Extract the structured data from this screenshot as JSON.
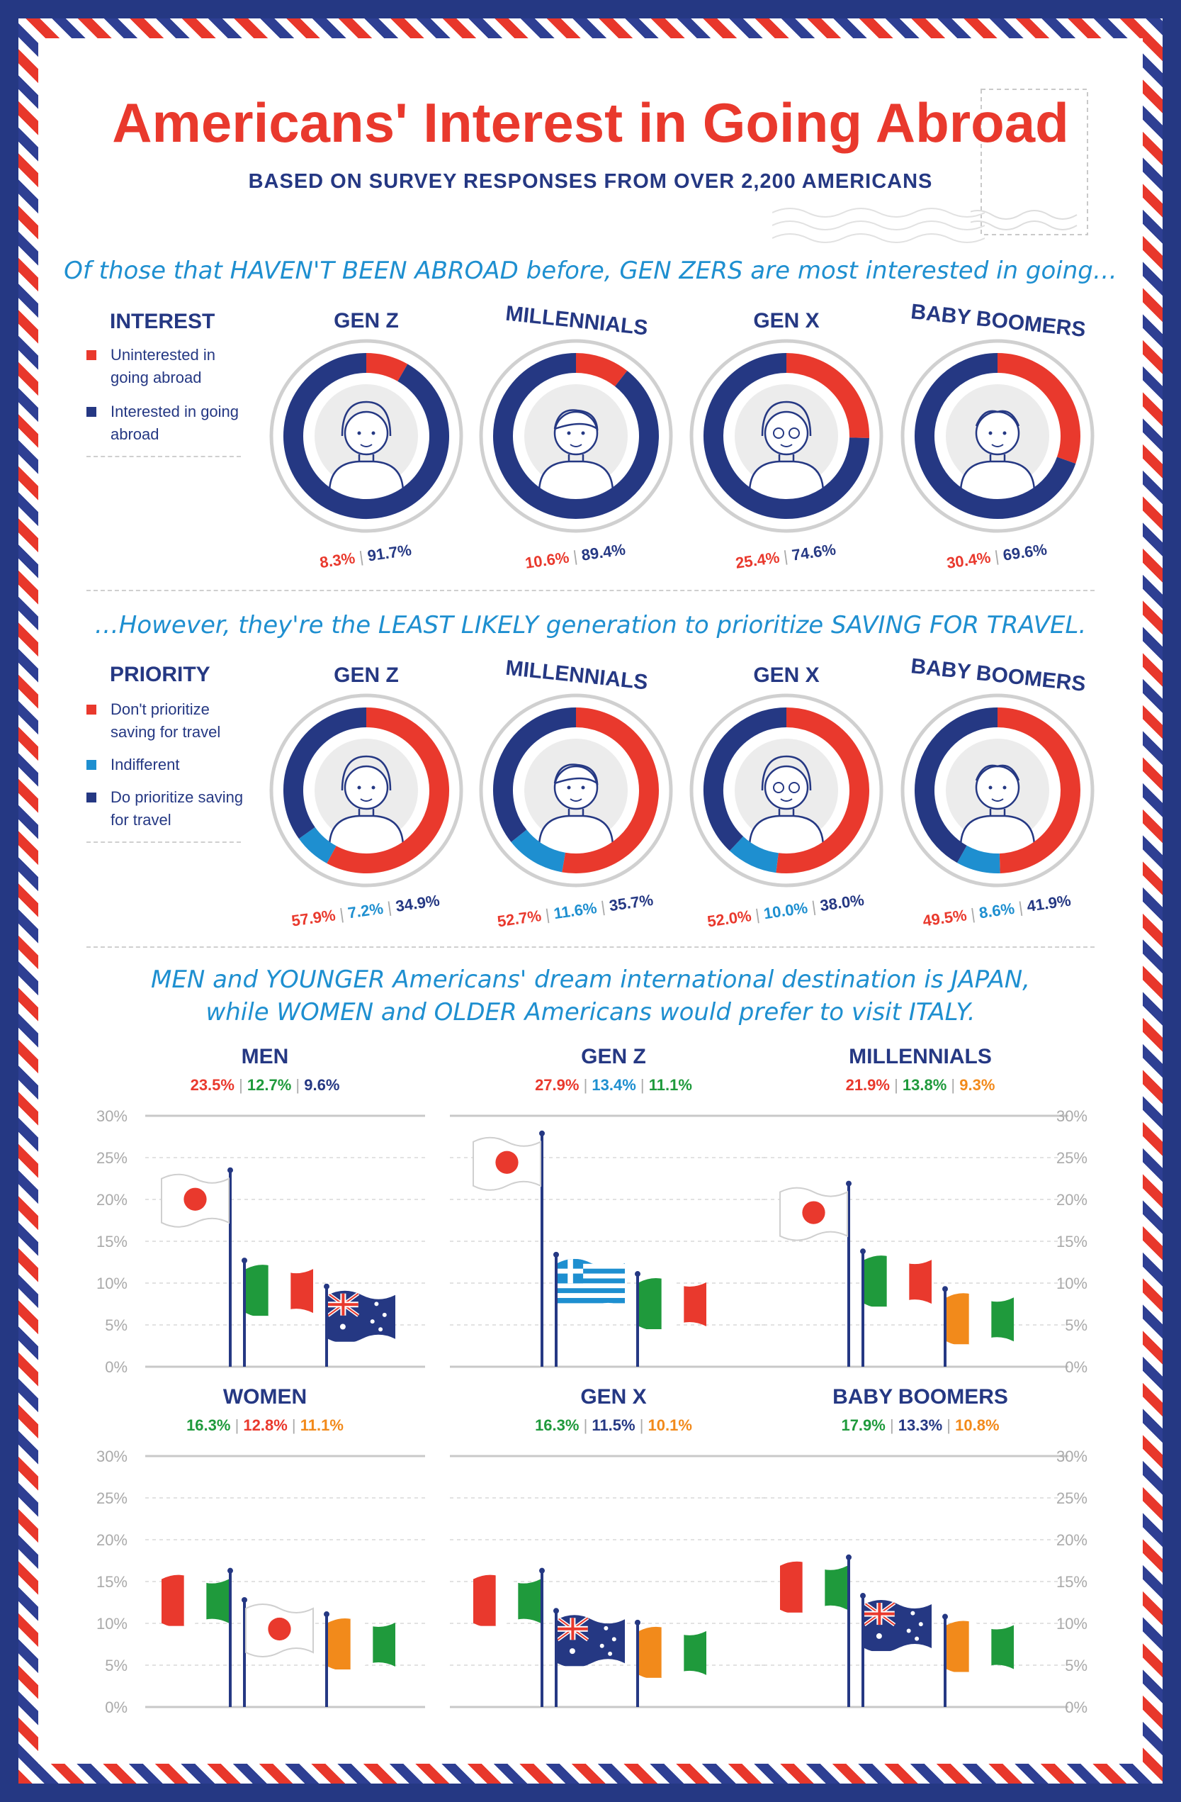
{
  "title": "Americans' Interest in Going Abroad",
  "subtitle": "BASED ON SURVEY RESPONSES FROM OVER 2,200 AMERICANS",
  "section1": {
    "headline": "Of those that HAVEN'T BEEN ABROAD before, GEN ZERS are most interested in going…",
    "legend_title": "INTEREST",
    "legend": [
      {
        "label": "Uninterested in going abroad",
        "color": "#e9392d"
      },
      {
        "label": "Interested in going abroad",
        "color": "#253883"
      }
    ]
  },
  "section2": {
    "headline": "…However, they're the LEAST LIKELY generation to prioritize SAVING FOR TRAVEL.",
    "legend_title": "PRIORITY",
    "legend": [
      {
        "label": "Don't prioritize saving for travel",
        "color": "#e9392d"
      },
      {
        "label": "Indifferent",
        "color": "#1e8fd0"
      },
      {
        "label": "Do prioritize saving for travel",
        "color": "#253883"
      }
    ]
  },
  "section3": {
    "headline_line1": "MEN and YOUNGER Americans' dream international destination is JAPAN,",
    "headline_line2": "while WOMEN and OLDER Americans would prefer to visit ITALY."
  },
  "colors": {
    "red": "#e9392d",
    "navy": "#253883",
    "blue": "#1e8fd0",
    "green": "#1f9a3c",
    "orange": "#f28a1b"
  },
  "chart_data": [
    {
      "type": "pie",
      "title": "INTEREST",
      "groups": [
        {
          "name": "GEN Z",
          "values": [
            8.3,
            91.7
          ],
          "labels": [
            "8.3%",
            "91.7%"
          ]
        },
        {
          "name": "MILLENNIALS",
          "values": [
            10.6,
            89.4
          ],
          "labels": [
            "10.6%",
            "89.4%"
          ]
        },
        {
          "name": "GEN X",
          "values": [
            25.4,
            74.6
          ],
          "labels": [
            "25.4%",
            "74.6%"
          ]
        },
        {
          "name": "BABY BOOMERS",
          "values": [
            30.4,
            69.6
          ],
          "labels": [
            "30.4%",
            "69.6%"
          ]
        }
      ],
      "series": [
        "Uninterested in going abroad",
        "Interested in going abroad"
      ]
    },
    {
      "type": "pie",
      "title": "PRIORITY",
      "groups": [
        {
          "name": "GEN Z",
          "values": [
            57.9,
            7.2,
            34.9
          ],
          "labels": [
            "57.9%",
            "7.2%",
            "34.9%"
          ]
        },
        {
          "name": "MILLENNIALS",
          "values": [
            52.7,
            11.6,
            35.7
          ],
          "labels": [
            "52.7%",
            "11.6%",
            "35.7%"
          ]
        },
        {
          "name": "GEN X",
          "values": [
            52.0,
            10.0,
            38.0
          ],
          "labels": [
            "52.0%",
            "10.0%",
            "38.0%"
          ]
        },
        {
          "name": "BABY BOOMERS",
          "values": [
            49.5,
            8.6,
            41.9
          ],
          "labels": [
            "49.5%",
            "8.6%",
            "41.9%"
          ]
        }
      ],
      "series": [
        "Don't prioritize saving for travel",
        "Indifferent",
        "Do prioritize saving for travel"
      ]
    },
    {
      "type": "bar",
      "ylim": [
        0,
        30
      ],
      "yticks": [
        "30%",
        "25%",
        "20%",
        "15%",
        "10%",
        "5%",
        "0%"
      ],
      "panels": [
        {
          "title": "MEN",
          "flags": [
            "japan",
            "italy",
            "australia"
          ],
          "values": [
            23.5,
            12.7,
            9.6
          ],
          "labels": [
            "23.5%",
            "12.7%",
            "9.6%"
          ],
          "colors": [
            "#e9392d",
            "#1f9a3c",
            "#253883"
          ]
        },
        {
          "title": "GEN Z",
          "flags": [
            "japan",
            "greece",
            "italy"
          ],
          "values": [
            27.9,
            13.4,
            11.1
          ],
          "labels": [
            "27.9%",
            "13.4%",
            "11.1%"
          ],
          "colors": [
            "#e9392d",
            "#1e8fd0",
            "#1f9a3c"
          ]
        },
        {
          "title": "MILLENNIALS",
          "flags": [
            "japan",
            "italy",
            "ireland"
          ],
          "values": [
            21.9,
            13.8,
            9.3
          ],
          "labels": [
            "21.9%",
            "13.8%",
            "9.3%"
          ],
          "colors": [
            "#e9392d",
            "#1f9a3c",
            "#f28a1b"
          ]
        },
        {
          "title": "WOMEN",
          "flags": [
            "italy",
            "japan",
            "ireland"
          ],
          "values": [
            16.3,
            12.8,
            11.1
          ],
          "labels": [
            "16.3%",
            "12.8%",
            "11.1%"
          ],
          "colors": [
            "#1f9a3c",
            "#e9392d",
            "#f28a1b"
          ]
        },
        {
          "title": "GEN X",
          "flags": [
            "italy",
            "australia",
            "ireland"
          ],
          "values": [
            16.3,
            11.5,
            10.1
          ],
          "labels": [
            "16.3%",
            "11.5%",
            "10.1%"
          ],
          "colors": [
            "#1f9a3c",
            "#253883",
            "#f28a1b"
          ]
        },
        {
          "title": "BABY BOOMERS",
          "flags": [
            "italy",
            "australia",
            "ireland"
          ],
          "values": [
            17.9,
            13.3,
            10.8
          ],
          "labels": [
            "17.9%",
            "13.3%",
            "10.8%"
          ],
          "colors": [
            "#1f9a3c",
            "#253883",
            "#f28a1b"
          ]
        }
      ]
    }
  ]
}
